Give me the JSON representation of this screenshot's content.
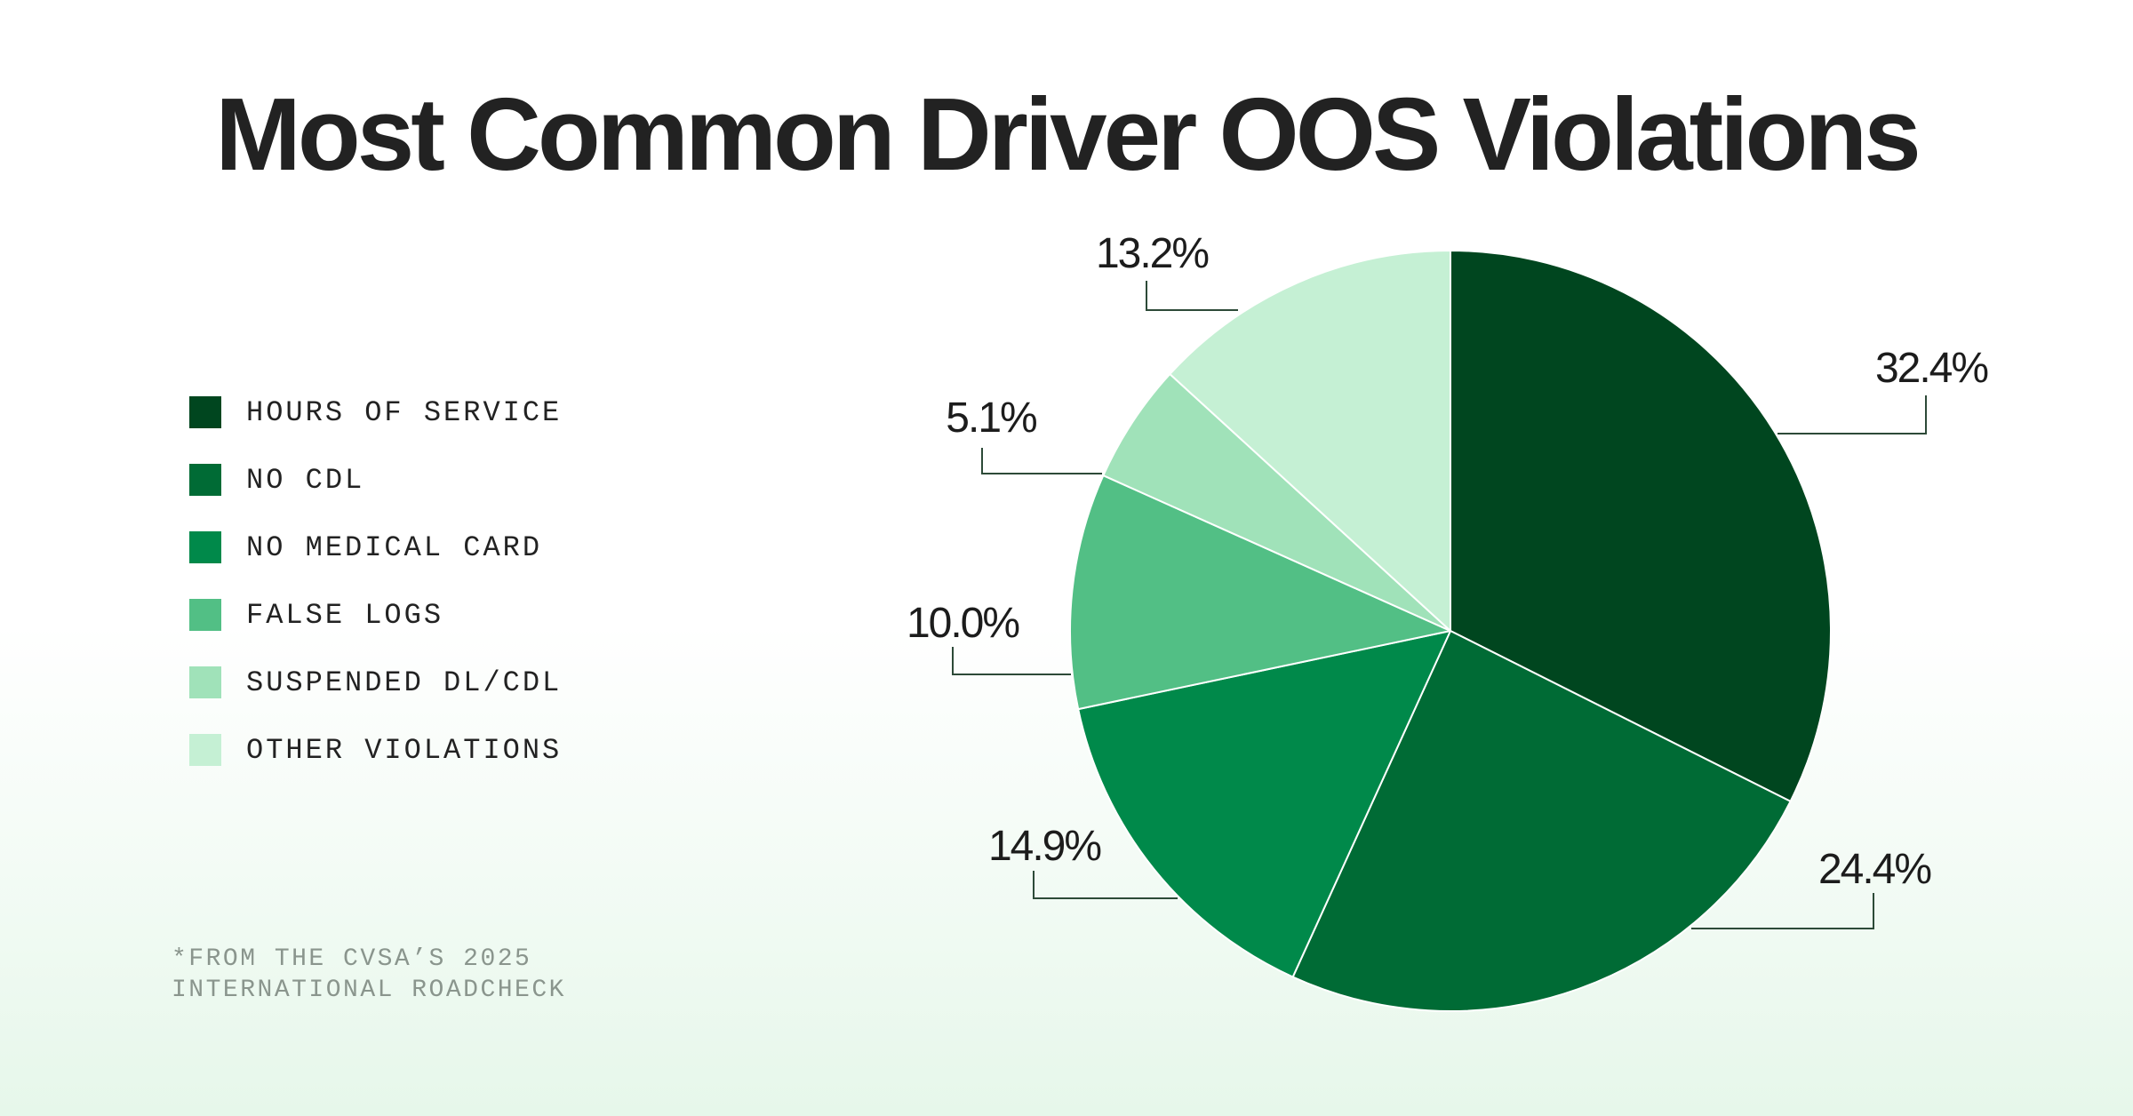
{
  "chart_data": {
    "type": "pie",
    "title": "Most Common Driver OOS Violations",
    "slices": [
      {
        "label": "HOURS OF SERVICE",
        "value": 32.4,
        "value_label": "32.4%",
        "color": "#00461f"
      },
      {
        "label": "NO CDL",
        "value": 24.4,
        "value_label": "24.4%",
        "color": "#006b35"
      },
      {
        "label": "NO MEDICAL CARD",
        "value": 14.9,
        "value_label": "14.9%",
        "color": "#00894a"
      },
      {
        "label": "FALSE LOGS",
        "value": 10.0,
        "value_label": "10.0%",
        "color": "#52bf85"
      },
      {
        "label": "SUSPENDED DL/CDL",
        "value": 5.1,
        "value_label": "5.1%",
        "color": "#a0e2b9"
      },
      {
        "label": "OTHER VIOLATIONS",
        "value": 13.2,
        "value_label": "13.2%",
        "color": "#c5f0d4"
      }
    ],
    "start": "12 o'clock",
    "direction": "clockwise",
    "legend": "left",
    "footnote": [
      "*FROM THE CVSA’S 2025",
      "INTERNATIONAL ROADCHECK"
    ]
  },
  "colors": {
    "title": "#222222",
    "label_text": "#1c1c1c",
    "leader_line": "#2d4a38",
    "footnote": "#8a958d",
    "slice_border": "#ffffff"
  }
}
